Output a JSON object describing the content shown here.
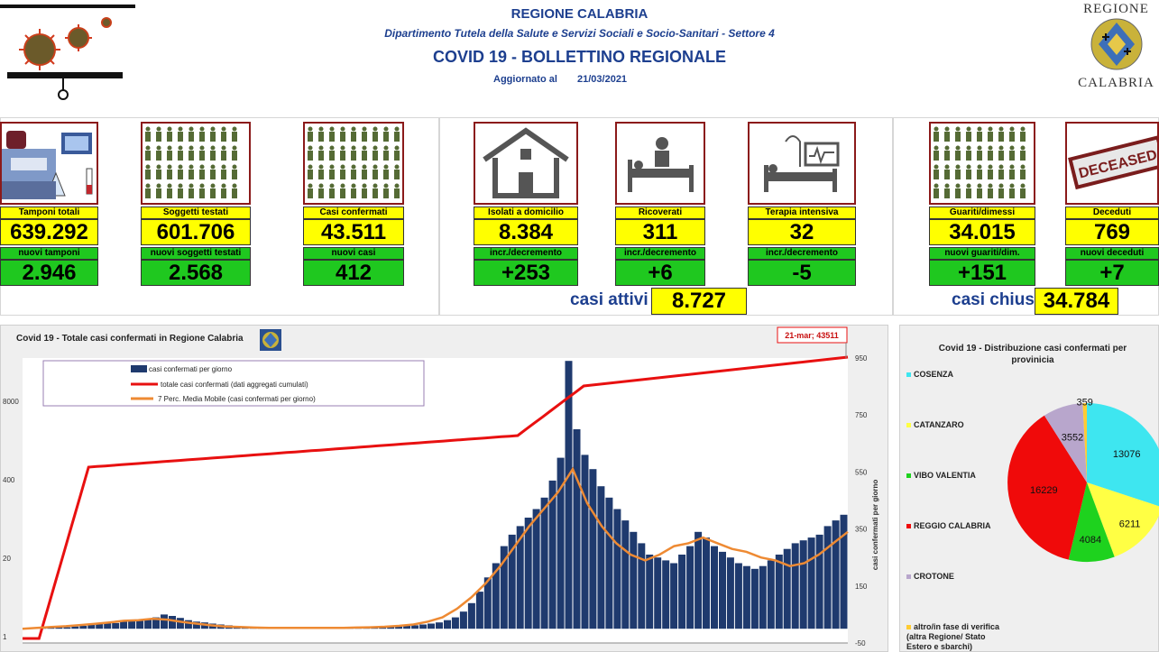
{
  "header": {
    "region": "REGIONE CALABRIA",
    "department": "Dipartimento Tutela della Salute e Servizi Sociali e Socio-Sanitari - Settore 4",
    "title": "COVID 19 - BOLLETTINO REGIONALE",
    "updated_label": "Aggiornato al",
    "updated_date": "21/03/2021",
    "logo_top": "REGIONE",
    "logo_bottom": "CALABRIA"
  },
  "kpis": [
    {
      "label": "Tamponi totali",
      "value": "639.292",
      "sub_label": "nuovi tamponi",
      "sub_value": "2.946"
    },
    {
      "label": "Soggetti testati",
      "value": "601.706",
      "sub_label": "nuovi soggetti testati",
      "sub_value": "2.568"
    },
    {
      "label": "Casi confermati",
      "value": "43.511",
      "sub_label": "nuovi casi",
      "sub_value": "412"
    },
    {
      "label": "Isolati a domicilio",
      "value": "8.384",
      "sub_label": "incr./decremento",
      "sub_value": "+253"
    },
    {
      "label": "Ricoverati",
      "value": "311",
      "sub_label": "incr./decremento",
      "sub_value": "+6"
    },
    {
      "label": "Terapia intensiva",
      "value": "32",
      "sub_label": "incr./decremento",
      "sub_value": "-5"
    },
    {
      "label": "Guariti/dimessi",
      "value": "34.015",
      "sub_label": "nuovi guariti/dim.",
      "sub_value": "+151"
    },
    {
      "label": "Deceduti",
      "value": "769",
      "sub_label": "nuovi deceduti",
      "sub_value": "+7"
    }
  ],
  "deceased_stamp": "DECEASED",
  "aggregates": {
    "active_label": "casi attivi",
    "active_value": "8.727",
    "closed_label": "casi chiusi",
    "closed_value": "34.784"
  },
  "colors": {
    "yellow": "#ffff00",
    "green": "#1fc81f",
    "blue_text": "#1d3f8f",
    "bars": "#1f3a6e",
    "cumulative": "#e81010",
    "moving_avg": "#ee8a33"
  },
  "chart_data": [
    {
      "type": "bar",
      "title": "Covid 19 - Totale casi confermati in Regione Calabria",
      "callout": "21-mar; 43511",
      "legend": [
        "casi confermati per giorno",
        "totale casi confermati (dati aggregati cumulati)",
        "7 Perc. Media Mobile (casi confermati per giorno)"
      ],
      "legend_position": "top-left",
      "y_left_ticks": [
        "8000",
        "400",
        "20",
        "1"
      ],
      "y_right_ticks": [
        "950",
        "750",
        "550",
        "350",
        "150",
        "-50"
      ],
      "y_right_label": "casi confermati per giorno",
      "y_right_range": [
        -50,
        950
      ],
      "series": [
        {
          "name": "casi confermati per giorno",
          "kind": "bar",
          "values": [
            0,
            2,
            3,
            4,
            6,
            5,
            8,
            10,
            14,
            18,
            22,
            20,
            25,
            30,
            28,
            35,
            40,
            50,
            45,
            38,
            30,
            25,
            22,
            18,
            15,
            12,
            10,
            8,
            6,
            5,
            4,
            3,
            3,
            2,
            2,
            2,
            2,
            3,
            2,
            2,
            3,
            3,
            4,
            4,
            5,
            6,
            8,
            10,
            12,
            15,
            18,
            22,
            30,
            40,
            60,
            90,
            130,
            180,
            230,
            290,
            330,
            360,
            390,
            420,
            460,
            520,
            600,
            940,
            700,
            610,
            560,
            500,
            460,
            420,
            380,
            340,
            300,
            260,
            250,
            240,
            230,
            260,
            290,
            340,
            320,
            290,
            270,
            250,
            230,
            220,
            210,
            220,
            240,
            260,
            280,
            300,
            310,
            320,
            330,
            360,
            380,
            400
          ]
        },
        {
          "name": "totale casi confermati (dati aggregati cumulati)",
          "kind": "line",
          "values": [
            1,
            1,
            1
          ]
        },
        {
          "name": "7 Perc. Media Mobile (casi confermati per giorno)",
          "kind": "line",
          "values": [
            0,
            3,
            6,
            9,
            13,
            17,
            22,
            28,
            30,
            35,
            32,
            24,
            18,
            12,
            8,
            6,
            4,
            3,
            3,
            3,
            3,
            3,
            3,
            4,
            5,
            7,
            10,
            15,
            25,
            40,
            70,
            110,
            160,
            220,
            290,
            360,
            420,
            480,
            560,
            440,
            360,
            300,
            260,
            240,
            260,
            290,
            300,
            320,
            300,
            280,
            270,
            250,
            240,
            220,
            230,
            260,
            300,
            340
          ]
        }
      ]
    },
    {
      "type": "pie",
      "title": "Covid 19 - Distribuzione casi confermati per provinicia",
      "legend": [
        "COSENZA",
        "CATANZARO",
        "VIBO VALENTIA",
        "REGGIO CALABRIA",
        "CROTONE",
        "altro/in fase di verifica (altra Regione/ Stato Estero e sbarchi)"
      ],
      "legend_position": "left",
      "categories": [
        "COSENZA",
        "CATANZARO",
        "VIBO VALENTIA",
        "REGGIO CALABRIA",
        "CROTONE",
        "altro/in fase di verifica (altra Regione/ Stato Estero e sbarchi)"
      ],
      "values": [
        13076,
        6211,
        4084,
        16229,
        3552,
        359
      ],
      "colors": [
        "#3ee6f0",
        "#ffff44",
        "#1ed21e",
        "#f00a0a",
        "#b8a6cc",
        "#ffcc33"
      ]
    }
  ]
}
